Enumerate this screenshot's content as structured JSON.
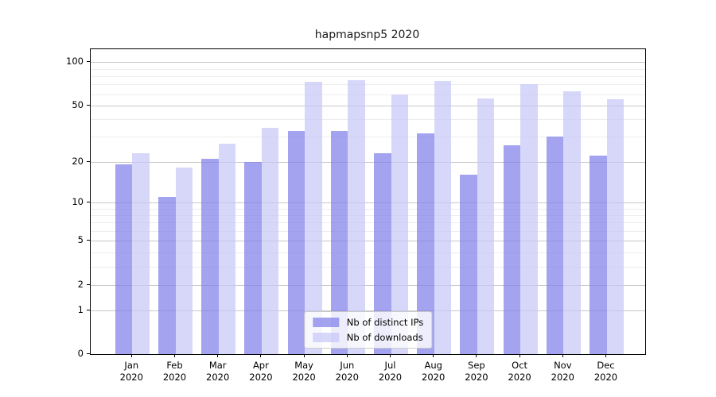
{
  "title": "hapmapsnp5 2020",
  "chart_data": {
    "type": "bar",
    "title": "hapmapsnp5 2020",
    "categories": [
      "Jan",
      "Feb",
      "Mar",
      "Apr",
      "May",
      "Jun",
      "Jul",
      "Aug",
      "Sep",
      "Oct",
      "Nov",
      "Dec"
    ],
    "category_year": "2020",
    "series": [
      {
        "name": "Nb of distinct IPs",
        "color": "rgba(124,124,234,0.7)",
        "values": [
          19,
          11,
          21,
          20,
          33,
          33,
          23,
          32,
          16,
          26,
          30,
          22
        ]
      },
      {
        "name": "Nb of downloads",
        "color": "rgba(198,198,248,0.7)",
        "values": [
          23,
          18,
          27,
          35,
          73,
          75,
          60,
          74,
          56,
          70,
          63,
          55
        ]
      }
    ],
    "scale": "log1p",
    "ylim": [
      0,
      123
    ],
    "y_ticks": [
      0,
      1,
      2,
      5,
      10,
      20,
      50,
      100
    ],
    "y_minor_ticks": [
      3,
      4,
      6,
      7,
      8,
      9,
      30,
      40,
      60,
      70,
      80,
      90
    ],
    "xlabel": "",
    "ylabel": "",
    "grid": true,
    "legend_position": "lower center",
    "colors": {
      "grid_major": "#c8c8c8",
      "grid_minor": "#ededed",
      "axis": "#000000",
      "background": "#ffffff"
    }
  }
}
